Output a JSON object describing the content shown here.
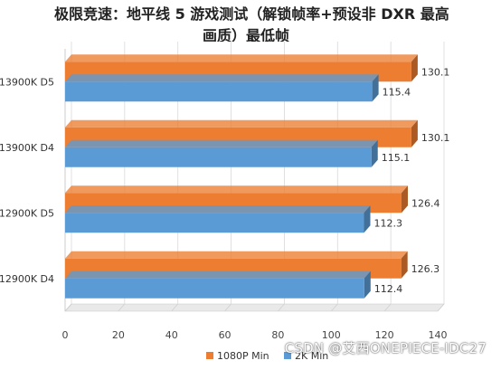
{
  "chart_data": {
    "type": "bar",
    "orientation": "horizontal",
    "title_line1": "极限竞速：地平线 5 游戏测试（解锁帧率+预设非 DXR 最高",
    "title_line2": "画质）最低帧",
    "categories": [
      "13900K D5",
      "13900K D4",
      "12900K D5",
      "12900K D4"
    ],
    "series": [
      {
        "name": "1080P Min",
        "color": "#ed7d31",
        "values": [
          130.1,
          130.1,
          126.4,
          126.3
        ]
      },
      {
        "name": "2K Min",
        "color": "#5b9bd5",
        "values": [
          115.4,
          115.1,
          112.3,
          112.4
        ]
      }
    ],
    "xlim": [
      0,
      140
    ],
    "xticks": [
      0,
      20,
      40,
      60,
      80,
      100,
      120,
      140
    ],
    "grid": true,
    "legend": "bottom"
  },
  "watermark": "CSDN @艾西ONEPIECE-IDC27"
}
